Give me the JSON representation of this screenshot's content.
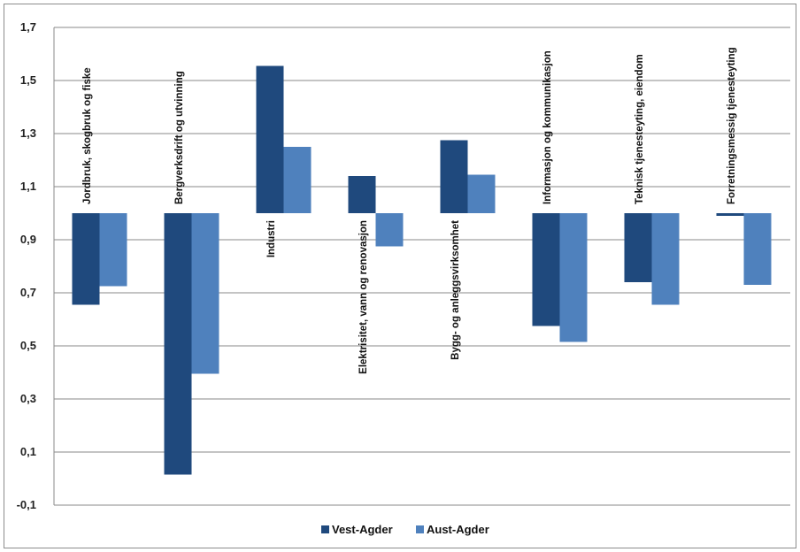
{
  "chart_data": {
    "type": "bar",
    "title": "",
    "xlabel": "",
    "ylabel": "",
    "baseline": 1.0,
    "ylim": [
      -0.1,
      1.7
    ],
    "yticks": [
      "1,7",
      "1,5",
      "1,3",
      "1,1",
      "0,9",
      "0,7",
      "0,5",
      "0,3",
      "0,1",
      "-0,1"
    ],
    "ytick_values": [
      1.7,
      1.5,
      1.3,
      1.1,
      0.9,
      0.7,
      0.5,
      0.3,
      0.1,
      -0.1
    ],
    "grid": "horizontal",
    "legend_position": "bottom",
    "categories": [
      "Jordbruk, skogbruk og fiske",
      "Bergverksdrift og utvinning",
      "Industri",
      "Elektrisitet, vann og renovasjon",
      "Bygg- og anleggsvirksomhet",
      "Informasjon og kommunikasjon",
      "Teknisk tjenesteyting, eiendom",
      "Forretningsmessig tjenesteyting"
    ],
    "series": [
      {
        "name": "Vest-Agder",
        "color": "#1f497d",
        "values": [
          0.655,
          0.015,
          1.555,
          1.14,
          1.275,
          0.575,
          0.74,
          0.99
        ]
      },
      {
        "name": "Aust-Agder",
        "color": "#4f81bd",
        "values": [
          0.725,
          0.395,
          1.25,
          0.875,
          1.145,
          0.515,
          0.655,
          0.73
        ]
      }
    ]
  }
}
